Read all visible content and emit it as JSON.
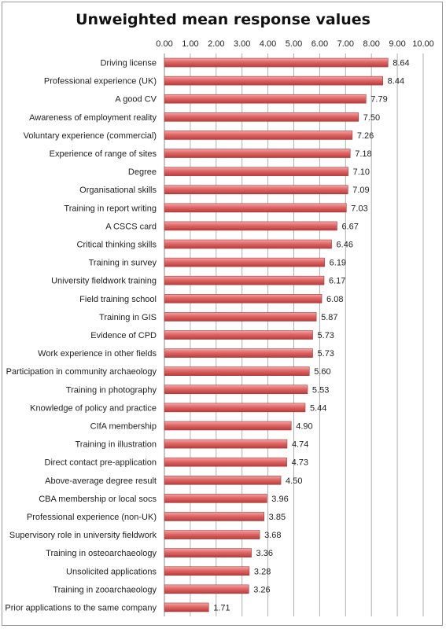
{
  "chart_data": {
    "type": "bar",
    "orientation": "horizontal",
    "title": "Unweighted mean response values",
    "xlim": [
      0,
      10
    ],
    "x_ticks": [
      "0.00",
      "1.00",
      "2.00",
      "3.00",
      "4.00",
      "5.00",
      "6.00",
      "7.00",
      "8.00",
      "9.00",
      "10.00"
    ],
    "x_axis_position": "top",
    "grid": true,
    "bar_color": "#e06666",
    "categories": [
      "Driving license",
      "Professional experience (UK)",
      "A good CV",
      "Awareness of employment reality",
      "Voluntary experience (commercial)",
      "Experience of range of sites",
      "Degree",
      "Organisational skills",
      "Training in report writing",
      "A CSCS card",
      "Critical thinking skills",
      "Training in survey",
      "University fieldwork training",
      "Field training school",
      "Training in GIS",
      "Evidence of CPD",
      "Work experience in other fields",
      "Participation in community archaeology",
      "Training in photography",
      "Knowledge of policy and practice",
      "CIfA membership",
      "Training in illustration",
      "Direct contact pre-application",
      "Above-average degree result",
      "CBA membership or local socs",
      "Professional experience (non-UK)",
      "Supervisory role in university fieldwork",
      "Training in osteoarchaeology",
      "Unsolicited applications",
      "Training in zooarchaeology",
      "Prior applications to the same company"
    ],
    "values": [
      8.64,
      8.44,
      7.79,
      7.5,
      7.26,
      7.18,
      7.1,
      7.09,
      7.03,
      6.67,
      6.46,
      6.19,
      6.17,
      6.08,
      5.87,
      5.73,
      5.73,
      5.6,
      5.53,
      5.44,
      4.9,
      4.74,
      4.73,
      4.5,
      3.96,
      3.85,
      3.68,
      3.36,
      3.28,
      3.26,
      1.71
    ],
    "value_labels": [
      "8.64",
      "8.44",
      "7.79",
      "7.50",
      "7.26",
      "7.18",
      "7.10",
      "7.09",
      "7.03",
      "6.67",
      "6.46",
      "6.19",
      "6.17",
      "6.08",
      "5.87",
      "5.73",
      "5.73",
      "5.60",
      "5.53",
      "5.44",
      "4.90",
      "4.74",
      "4.73",
      "4.50",
      "3.96",
      "3.85",
      "3.68",
      "3.36",
      "3.28",
      "3.26",
      "1.71"
    ]
  }
}
